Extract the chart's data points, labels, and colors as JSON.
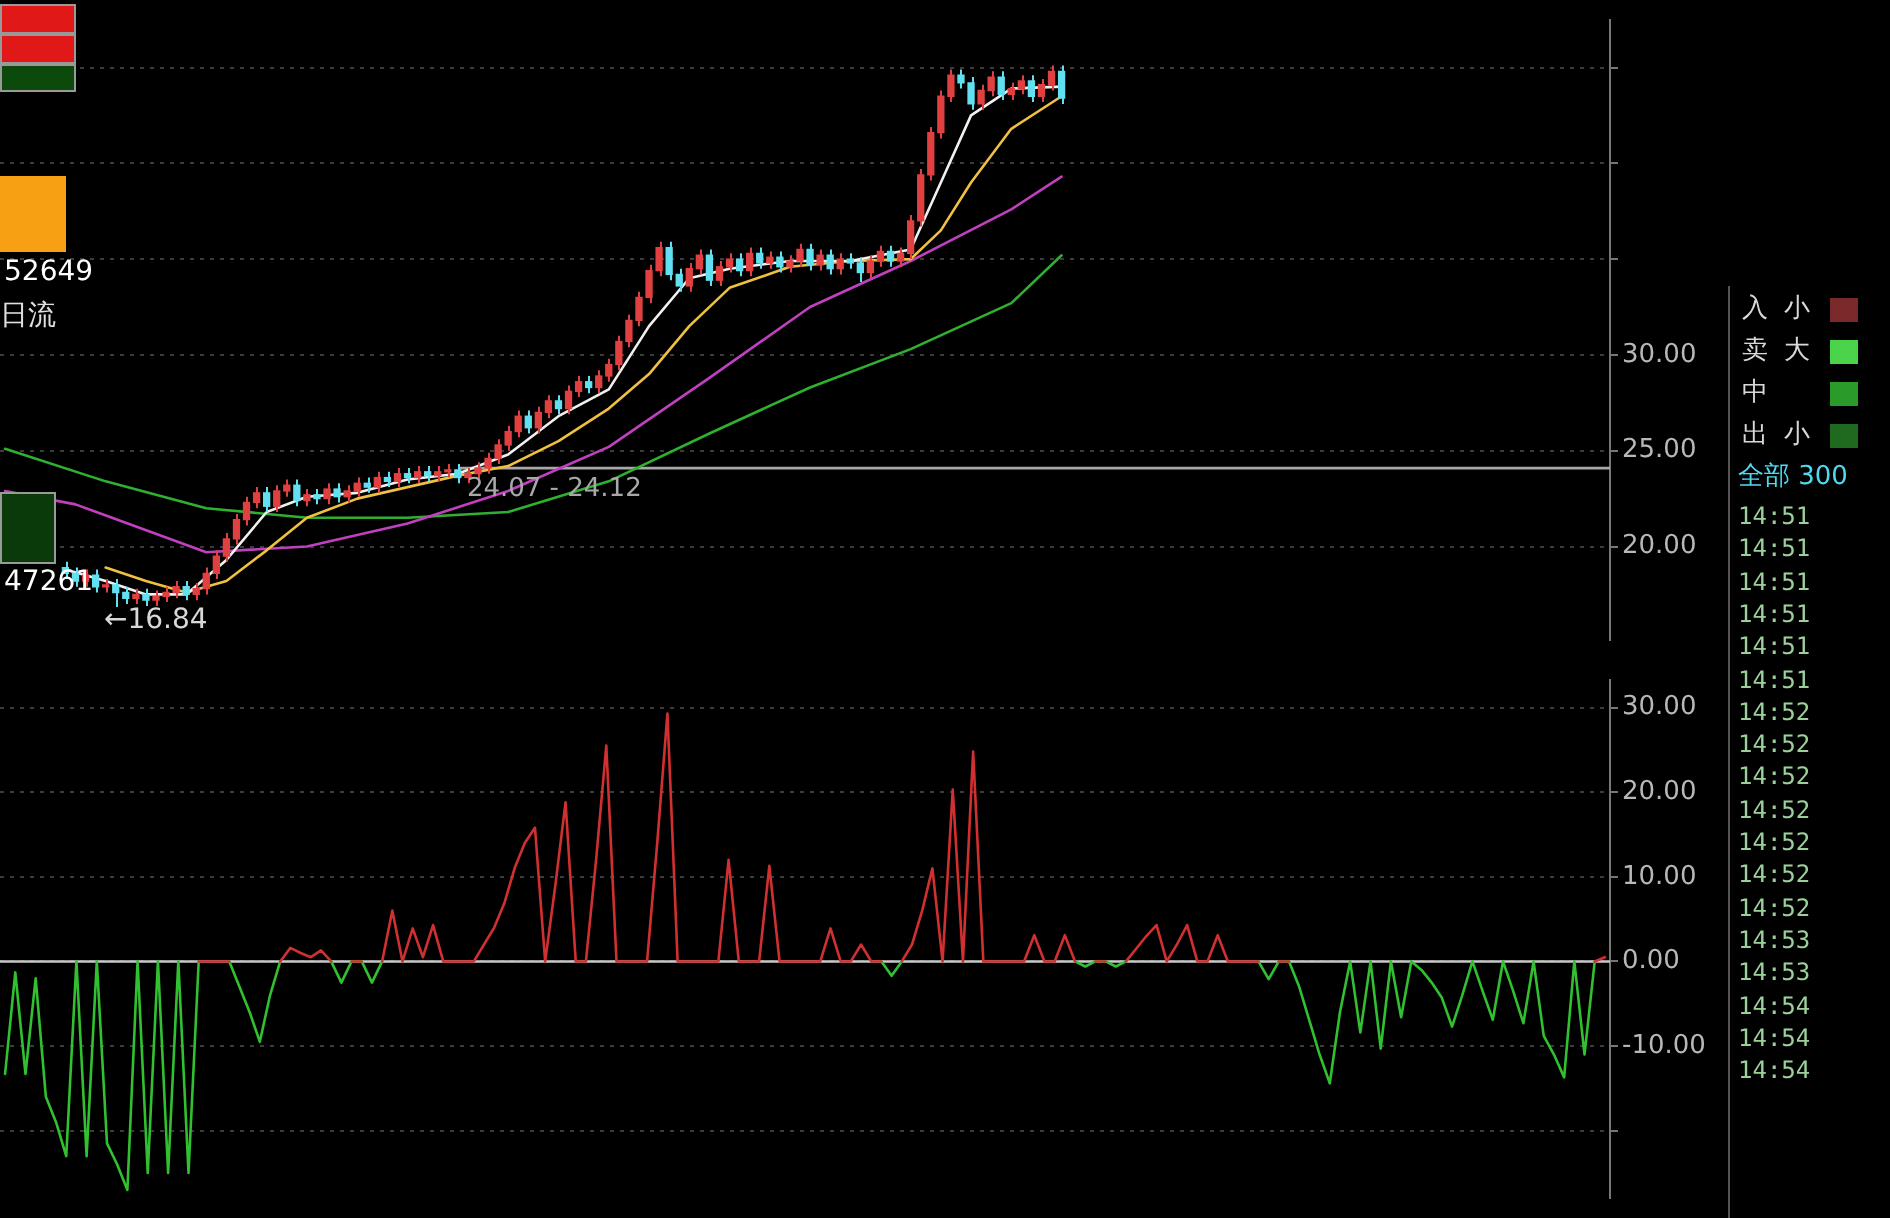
{
  "chart_data": [
    {
      "type": "candlestick",
      "ylim": [
        15.1,
        47.5
      ],
      "tick_labels": "y",
      "grid": "y",
      "yticks": [
        {
          "value": 20,
          "label": "20.00"
        },
        {
          "value": 25,
          "label": "25.00"
        },
        {
          "value": 30,
          "label": "30.00"
        },
        {
          "value": 35,
          "label": null
        },
        {
          "value": 40,
          "label": null
        },
        {
          "value": 45,
          "label": null
        }
      ],
      "categories": [
        null,
        null,
        null,
        null,
        null,
        null,
        null,
        null,
        null,
        null,
        null,
        null,
        null,
        null,
        null,
        null,
        null,
        null,
        null,
        null,
        null,
        null,
        null,
        null,
        null,
        null,
        null,
        null,
        null,
        null,
        null,
        null,
        null,
        null,
        null,
        null,
        null,
        null,
        null,
        null,
        null,
        null,
        null,
        null,
        null,
        null,
        null,
        null,
        null,
        null,
        null,
        null,
        null,
        null,
        null,
        null,
        null,
        null,
        null,
        null,
        null,
        null,
        null,
        null,
        null,
        null,
        null,
        null,
        null,
        null,
        null,
        null,
        null,
        null,
        null,
        null,
        null,
        null,
        null,
        null,
        null,
        null,
        null,
        null,
        null,
        null,
        null,
        null,
        null,
        null,
        null,
        null,
        null,
        null,
        null,
        null,
        null,
        null,
        null,
        null,
        null,
        null,
        null,
        null,
        null,
        null,
        null,
        null,
        null,
        null,
        null,
        null,
        null,
        null,
        null,
        null,
        null,
        null,
        null,
        null,
        null,
        null,
        null,
        null,
        null,
        null,
        null,
        null,
        null,
        null,
        null,
        null,
        null,
        null,
        null,
        null,
        null,
        null,
        null,
        null,
        null,
        null,
        null,
        null,
        null,
        null,
        null,
        null,
        null,
        null,
        null,
        null,
        null,
        null,
        null,
        null,
        null,
        null,
        null,
        null
      ],
      "ohlc": [
        null,
        null,
        null,
        null,
        null,
        null,
        [
          18.9,
          19.2,
          18.3,
          18.6
        ],
        [
          18.6,
          18.9,
          17.9,
          18.2
        ],
        [
          18.2,
          18.8,
          17.9,
          18.5
        ],
        [
          18.5,
          18.8,
          17.6,
          17.9
        ],
        [
          17.9,
          18.3,
          17.6,
          18.0
        ],
        [
          18.0,
          18.3,
          16.84,
          17.6
        ],
        [
          17.6,
          17.9,
          17.0,
          17.3
        ],
        [
          17.3,
          17.8,
          17.0,
          17.5
        ],
        [
          17.5,
          17.8,
          16.9,
          17.2
        ],
        [
          17.2,
          17.7,
          16.9,
          17.4
        ],
        [
          17.4,
          17.9,
          17.1,
          17.6
        ],
        [
          17.6,
          18.2,
          17.3,
          17.9
        ],
        [
          17.9,
          18.2,
          17.2,
          17.5
        ],
        [
          17.5,
          18.1,
          17.2,
          17.8
        ],
        [
          17.8,
          18.9,
          17.5,
          18.6
        ],
        [
          18.6,
          19.8,
          18.3,
          19.5
        ],
        [
          19.5,
          20.7,
          19.2,
          20.4
        ],
        [
          20.4,
          21.7,
          20.1,
          21.4
        ],
        [
          21.4,
          22.6,
          21.1,
          22.3
        ],
        [
          22.3,
          23.1,
          22.0,
          22.8
        ],
        [
          22.8,
          23.1,
          21.8,
          22.1
        ],
        [
          22.1,
          23.2,
          21.8,
          22.9
        ],
        [
          22.9,
          23.5,
          22.6,
          23.2
        ],
        [
          23.2,
          23.5,
          22.1,
          22.4
        ],
        [
          22.4,
          23.0,
          22.1,
          22.7
        ],
        [
          22.7,
          23.0,
          22.2,
          22.5
        ],
        [
          22.5,
          23.3,
          22.2,
          23.0
        ],
        [
          23.0,
          23.3,
          22.3,
          22.6
        ],
        [
          22.6,
          23.2,
          22.3,
          22.9
        ],
        [
          22.9,
          23.6,
          22.6,
          23.3
        ],
        [
          23.3,
          23.6,
          22.8,
          23.1
        ],
        [
          23.1,
          23.9,
          22.8,
          23.6
        ],
        [
          23.6,
          23.9,
          23.1,
          23.4
        ],
        [
          23.4,
          24.1,
          23.1,
          23.8
        ],
        [
          23.8,
          24.1,
          23.3,
          23.6
        ],
        [
          23.6,
          24.2,
          23.3,
          23.9
        ],
        [
          23.9,
          24.2,
          23.4,
          23.7
        ],
        [
          23.7,
          24.2,
          23.4,
          23.9
        ],
        [
          23.9,
          24.3,
          23.6,
          24.0
        ],
        [
          24.0,
          24.3,
          23.3,
          23.6
        ],
        [
          23.6,
          24.1,
          23.3,
          23.8
        ],
        [
          23.8,
          24.4,
          23.5,
          24.1
        ],
        [
          24.1,
          24.9,
          23.8,
          24.6
        ],
        [
          24.6,
          25.6,
          24.3,
          25.3
        ],
        [
          25.3,
          26.3,
          25.0,
          26.0
        ],
        [
          26.0,
          27.1,
          25.7,
          26.8
        ],
        [
          26.8,
          27.1,
          25.9,
          26.2
        ],
        [
          26.2,
          27.3,
          25.9,
          27.0
        ],
        [
          27.0,
          27.9,
          26.7,
          27.6
        ],
        [
          27.6,
          27.9,
          26.9,
          27.2
        ],
        [
          27.2,
          28.4,
          26.9,
          28.1
        ],
        [
          28.1,
          28.9,
          27.8,
          28.6
        ],
        [
          28.6,
          28.9,
          28.0,
          28.3
        ],
        [
          28.3,
          29.2,
          28.0,
          28.9
        ],
        [
          28.9,
          29.8,
          28.6,
          29.5
        ],
        [
          29.5,
          31.0,
          29.2,
          30.7
        ],
        [
          30.7,
          32.1,
          30.4,
          31.8
        ],
        [
          31.8,
          33.3,
          31.5,
          33.0
        ],
        [
          33.0,
          34.7,
          32.7,
          34.4
        ],
        [
          34.4,
          35.9,
          34.1,
          35.6
        ],
        [
          35.6,
          35.9,
          33.9,
          34.2
        ],
        [
          34.2,
          34.5,
          33.3,
          33.6
        ],
        [
          33.6,
          34.8,
          33.3,
          34.5
        ],
        [
          34.5,
          35.5,
          34.2,
          35.2
        ],
        [
          35.2,
          35.5,
          33.6,
          33.9
        ],
        [
          33.9,
          34.9,
          33.6,
          34.6
        ],
        [
          34.6,
          35.3,
          34.3,
          35.0
        ],
        [
          35.0,
          35.3,
          34.1,
          34.4
        ],
        [
          34.4,
          35.6,
          34.1,
          35.3
        ],
        [
          35.3,
          35.6,
          34.5,
          34.8
        ],
        [
          34.8,
          35.4,
          34.5,
          35.1
        ],
        [
          35.1,
          35.4,
          34.3,
          34.6
        ],
        [
          34.6,
          35.2,
          34.3,
          34.9
        ],
        [
          34.9,
          35.8,
          34.6,
          35.5
        ],
        [
          35.5,
          35.8,
          34.4,
          34.7
        ],
        [
          34.7,
          35.5,
          34.4,
          35.2
        ],
        [
          35.2,
          35.5,
          34.2,
          34.5
        ],
        [
          34.5,
          35.3,
          34.2,
          35.0
        ],
        [
          35.0,
          35.3,
          34.5,
          34.8
        ],
        [
          34.8,
          35.1,
          33.8,
          34.3
        ],
        [
          34.3,
          35.2,
          34.0,
          34.9
        ],
        [
          34.9,
          35.7,
          34.6,
          35.4
        ],
        [
          35.4,
          35.7,
          34.6,
          34.9
        ],
        [
          34.9,
          35.6,
          34.6,
          35.3
        ],
        [
          35.3,
          37.3,
          35.0,
          37.0
        ],
        [
          37.0,
          39.7,
          36.7,
          39.4
        ],
        [
          39.4,
          41.9,
          39.1,
          41.6
        ],
        [
          41.6,
          43.8,
          41.3,
          43.5
        ],
        [
          43.5,
          44.9,
          43.2,
          44.6
        ],
        [
          44.6,
          44.9,
          43.9,
          44.2
        ],
        [
          44.2,
          44.5,
          42.8,
          43.1
        ],
        [
          43.1,
          44.1,
          42.8,
          43.8
        ],
        [
          43.8,
          44.8,
          43.5,
          44.5
        ],
        [
          44.5,
          44.8,
          43.3,
          43.6
        ],
        [
          43.6,
          44.2,
          43.3,
          43.9
        ],
        [
          43.9,
          44.6,
          43.6,
          44.3
        ],
        [
          44.3,
          44.6,
          43.2,
          43.5
        ],
        [
          43.5,
          44.4,
          43.2,
          44.1
        ],
        [
          44.1,
          45.1,
          43.8,
          44.8
        ],
        [
          44.8,
          45.1,
          43.1,
          43.4
        ],
        null,
        null,
        null,
        null,
        null,
        null,
        null,
        null,
        null,
        null,
        null,
        null,
        null,
        null,
        null,
        null,
        null,
        null,
        null,
        null,
        null,
        null,
        null,
        null,
        null,
        null,
        null,
        null,
        null,
        null,
        null,
        null,
        null,
        null,
        null,
        null,
        null,
        null,
        null,
        null,
        null,
        null,
        null,
        null,
        null,
        null,
        null,
        null,
        null,
        null,
        null,
        null,
        null,
        null
      ],
      "colors": [
        null,
        null,
        null,
        null,
        null,
        null,
        "#60e0f0",
        "#60e0f0",
        "#e04040",
        "#60e0f0",
        "#e04040",
        "#60e0f0",
        "#60e0f0",
        "#e04040",
        "#60e0f0",
        "#e04040",
        "#e04040",
        "#e04040",
        "#60e0f0",
        "#e04040",
        "#e04040",
        "#e04040",
        "#e04040",
        "#e04040",
        "#e04040",
        "#e04040",
        "#60e0f0",
        "#e04040",
        "#e04040",
        "#60e0f0",
        "#e04040",
        "#60e0f0",
        "#e04040",
        "#60e0f0",
        "#e04040",
        "#e04040",
        "#60e0f0",
        "#e04040",
        "#60e0f0",
        "#e04040",
        "#60e0f0",
        "#e04040",
        "#60e0f0",
        "#e04040",
        "#e04040",
        "#60e0f0",
        "#e04040",
        "#e04040",
        "#e04040",
        "#e04040",
        "#e04040",
        "#e04040",
        "#60e0f0",
        "#e04040",
        "#e04040",
        "#60e0f0",
        "#e04040",
        "#e04040",
        "#60e0f0",
        "#e04040",
        "#e04040",
        "#e04040",
        "#e04040",
        "#e04040",
        "#e04040",
        "#e04040",
        "#60e0f0",
        "#60e0f0",
        "#e04040",
        "#e04040",
        "#60e0f0",
        "#e04040",
        "#e04040",
        "#60e0f0",
        "#e04040",
        "#60e0f0",
        "#e04040",
        "#60e0f0",
        "#e04040",
        "#e04040",
        "#60e0f0",
        "#e04040",
        "#60e0f0",
        "#e04040",
        "#60e0f0",
        "#60e0f0",
        "#e04040",
        "#e04040",
        "#60e0f0",
        "#e04040",
        "#e04040",
        "#e04040",
        "#e04040",
        "#e04040",
        "#e04040",
        "#60e0f0",
        "#60e0f0",
        "#e04040",
        "#e04040",
        "#60e0f0",
        "#e04040",
        "#e04040",
        "#60e0f0",
        "#e04040",
        "#e04040",
        "#60e0f0",
        null,
        null,
        null,
        null,
        null,
        null,
        null,
        null,
        null,
        null,
        null,
        null,
        null,
        null,
        null,
        null,
        null,
        null,
        null,
        null,
        null,
        null,
        null,
        null,
        null,
        null,
        null,
        null,
        null,
        null,
        null,
        null,
        null,
        null,
        null,
        null,
        null,
        null,
        null,
        null,
        null,
        null,
        null,
        null,
        null,
        null,
        null,
        null,
        null,
        null,
        null,
        null,
        null,
        null
      ],
      "series": [
        {
          "type": "line",
          "color": "#f0f0f0",
          "values": [
            null,
            null,
            null,
            null,
            null,
            null,
            18.8,
            null,
            null,
            null,
            18.2,
            null,
            null,
            null,
            17.5,
            null,
            null,
            null,
            17.5,
            null,
            null,
            null,
            19.3,
            null,
            null,
            null,
            21.8,
            null,
            null,
            null,
            22.6,
            null,
            null,
            null,
            null,
            22.8,
            null,
            null,
            null,
            null,
            23.5,
            null,
            null,
            null,
            null,
            23.8,
            null,
            null,
            null,
            null,
            24.8,
            null,
            null,
            null,
            null,
            26.8,
            null,
            null,
            null,
            null,
            28.2,
            null,
            null,
            null,
            31.5,
            null,
            null,
            null,
            34.0,
            null,
            null,
            null,
            34.5,
            null,
            null,
            null,
            null,
            null,
            34.9,
            null,
            null,
            null,
            null,
            null,
            34.9,
            null,
            null,
            null,
            null,
            null,
            35.5,
            null,
            null,
            39.0,
            null,
            null,
            42.5,
            null,
            null,
            null,
            43.9,
            null,
            null,
            null,
            null,
            44.0,
            null,
            null,
            null,
            null,
            null,
            null,
            null,
            null,
            null,
            null,
            null,
            null,
            null,
            null,
            null,
            null,
            null,
            null,
            null,
            null,
            null,
            null,
            null,
            null,
            null,
            null,
            null,
            null,
            null,
            null,
            null,
            null,
            null,
            null,
            null,
            null,
            null,
            null,
            null,
            null,
            null,
            null,
            null,
            null,
            null,
            null,
            null,
            null,
            null,
            null,
            null,
            null,
            null,
            null
          ]
        },
        {
          "type": "line",
          "color": "#f0c040",
          "values": [
            null,
            null,
            null,
            null,
            null,
            null,
            null,
            null,
            null,
            null,
            18.9,
            null,
            null,
            null,
            18.2,
            null,
            null,
            null,
            17.6,
            null,
            null,
            null,
            18.2,
            null,
            null,
            null,
            19.8,
            null,
            null,
            null,
            21.5,
            null,
            null,
            null,
            null,
            22.5,
            null,
            null,
            null,
            null,
            23.1,
            null,
            null,
            null,
            null,
            23.7,
            null,
            null,
            null,
            null,
            24.2,
            null,
            null,
            null,
            null,
            25.5,
            null,
            null,
            null,
            null,
            27.2,
            null,
            null,
            null,
            29.0,
            null,
            null,
            null,
            31.5,
            null,
            null,
            null,
            33.5,
            null,
            null,
            null,
            null,
            null,
            34.6,
            null,
            null,
            null,
            null,
            null,
            34.9,
            null,
            null,
            null,
            null,
            null,
            35.0,
            null,
            null,
            36.5,
            null,
            null,
            39.0,
            null,
            null,
            null,
            41.8,
            null,
            null,
            null,
            null,
            43.5,
            null,
            null,
            null,
            null,
            null,
            null,
            null,
            null,
            null,
            null,
            null,
            null,
            null,
            null,
            null,
            null,
            null,
            null,
            null,
            null,
            null,
            null,
            null,
            null,
            null,
            null,
            null,
            null,
            null,
            null,
            null,
            null,
            null,
            null,
            null,
            null,
            null,
            null,
            null,
            null,
            null,
            null,
            null,
            null,
            null,
            null,
            null,
            null,
            null,
            null,
            null,
            null,
            null,
            null
          ]
        },
        {
          "type": "line",
          "color": "#c040c0",
          "values": [
            22.9,
            null,
            null,
            null,
            null,
            null,
            null,
            22.2,
            null,
            null,
            null,
            null,
            null,
            null,
            null,
            null,
            null,
            null,
            null,
            null,
            19.7,
            null,
            null,
            null,
            null,
            null,
            null,
            null,
            null,
            null,
            20.0,
            null,
            null,
            null,
            null,
            null,
            null,
            null,
            null,
            null,
            21.2,
            null,
            null,
            null,
            null,
            null,
            null,
            null,
            null,
            null,
            22.9,
            null,
            null,
            null,
            null,
            null,
            null,
            null,
            null,
            null,
            25.2,
            null,
            null,
            null,
            null,
            null,
            null,
            null,
            null,
            null,
            28.8,
            null,
            null,
            null,
            null,
            null,
            null,
            null,
            null,
            null,
            32.5,
            null,
            null,
            null,
            null,
            null,
            null,
            null,
            null,
            null,
            34.9,
            null,
            null,
            null,
            null,
            null,
            null,
            null,
            null,
            null,
            37.6,
            null,
            null,
            null,
            null,
            39.3,
            null,
            null,
            null,
            null,
            null,
            null,
            null,
            null,
            null,
            null,
            null,
            null,
            null,
            null,
            null,
            null,
            null,
            null,
            null,
            null,
            null,
            null,
            null,
            null,
            null,
            null,
            null,
            null,
            null,
            null,
            null,
            null,
            null,
            null,
            null,
            null,
            null,
            null,
            null,
            null,
            null,
            null,
            null,
            null,
            null,
            null,
            null,
            null,
            null,
            null,
            null,
            null,
            null,
            null
          ]
        },
        {
          "type": "line",
          "color": "#30b030",
          "values": [
            25.1,
            null,
            null,
            null,
            null,
            null,
            null,
            null,
            null,
            null,
            23.4,
            null,
            null,
            null,
            null,
            null,
            null,
            null,
            null,
            null,
            22.0,
            null,
            null,
            null,
            null,
            null,
            null,
            null,
            null,
            null,
            21.5,
            null,
            null,
            null,
            null,
            null,
            null,
            null,
            null,
            null,
            21.5,
            null,
            null,
            null,
            null,
            null,
            null,
            null,
            null,
            null,
            21.8,
            null,
            null,
            null,
            null,
            null,
            null,
            null,
            null,
            null,
            23.4,
            null,
            null,
            null,
            null,
            null,
            null,
            null,
            null,
            null,
            25.9,
            null,
            null,
            null,
            null,
            null,
            null,
            null,
            null,
            null,
            28.3,
            null,
            null,
            null,
            null,
            null,
            null,
            null,
            null,
            null,
            30.3,
            null,
            null,
            null,
            null,
            null,
            null,
            null,
            null,
            null,
            32.7,
            null,
            null,
            null,
            null,
            35.2,
            null,
            null,
            null,
            null,
            null,
            null,
            null,
            null,
            null,
            null,
            null,
            null,
            null,
            null,
            null,
            null,
            null,
            null,
            null,
            null,
            null,
            null,
            null,
            null,
            null,
            null,
            null,
            null,
            null,
            null,
            null,
            null,
            null,
            null,
            null,
            null,
            null,
            null,
            null,
            null,
            null,
            null,
            null,
            null,
            null,
            null,
            null,
            null,
            null,
            null,
            null,
            null,
            null,
            null
          ]
        }
      ],
      "bands": [
        {
          "axis": "y",
          "from": 24.07,
          "to": 24.12,
          "label": "24.07 - 24.12",
          "color": "#a8a8a8"
        }
      ],
      "annotations": [
        "52649",
        "日流",
        "47261",
        "←16.84",
        "入 小",
        "卖 大",
        "中",
        "出 小",
        "全部 300",
        "14:51",
        "14:51",
        "14:51",
        "14:51",
        "14:51",
        "14:51",
        "14:52",
        "14:52",
        "14:52",
        "14:52",
        "14:52",
        "14:52",
        "14:52",
        "14:53",
        "14:53",
        "14:54",
        "14:54",
        "14:54"
      ]
    },
    {
      "type": "line",
      "ylim": [
        -28,
        33.3
      ],
      "tick_labels": "y",
      "grid": "y",
      "yticks": [
        {
          "value": -20,
          "label": null
        },
        {
          "value": -10,
          "label": "-10.00"
        },
        {
          "value": 0,
          "label": "0.00"
        },
        {
          "value": 10,
          "label": "10.00"
        },
        {
          "value": 20,
          "label": "20.00"
        },
        {
          "value": 30,
          "label": "30.00"
        }
      ],
      "categories": [
        null,
        null,
        null,
        null,
        null,
        null,
        null,
        null,
        null,
        null,
        null,
        null,
        null,
        null,
        null,
        null,
        null,
        null,
        null,
        null,
        null,
        null,
        null,
        null,
        null,
        null,
        null,
        null,
        null,
        null,
        null,
        null,
        null,
        null,
        null,
        null,
        null,
        null,
        null,
        null,
        null,
        null,
        null,
        null,
        null,
        null,
        null,
        null,
        null,
        null,
        null,
        null,
        null,
        null,
        null,
        null,
        null,
        null,
        null,
        null,
        null,
        null,
        null,
        null,
        null,
        null,
        null,
        null,
        null,
        null,
        null,
        null,
        null,
        null,
        null,
        null,
        null,
        null,
        null,
        null,
        null,
        null,
        null,
        null,
        null,
        null,
        null,
        null,
        null,
        null,
        null,
        null,
        null,
        null,
        null,
        null,
        null,
        null,
        null,
        null,
        null,
        null,
        null,
        null,
        null,
        null,
        null,
        null,
        null,
        null,
        null,
        null,
        null,
        null,
        null,
        null,
        null,
        null,
        null,
        null,
        null,
        null,
        null,
        null,
        null,
        null,
        null,
        null,
        null,
        null,
        null,
        null,
        null,
        null,
        null,
        null,
        null,
        null,
        null,
        null,
        null,
        null,
        null,
        null,
        null,
        null,
        null,
        null,
        null,
        null,
        null,
        null,
        null,
        null,
        null,
        null,
        null,
        null
      ],
      "series": [
        {
          "color": "#d03030",
          "values": [
            null,
            null,
            null,
            null,
            null,
            null,
            null,
            null,
            null,
            null,
            null,
            null,
            null,
            null,
            null,
            null,
            null,
            null,
            null,
            0,
            0,
            0,
            0,
            null,
            null,
            null,
            null,
            0,
            1.6,
            1,
            0.5,
            1.3,
            0,
            null,
            0,
            0,
            null,
            0,
            6,
            0,
            3.9,
            0.5,
            4.3,
            0,
            0,
            0,
            0,
            2,
            4,
            6.9,
            11,
            14,
            15.8,
            0,
            9,
            18.8,
            0,
            0,
            12,
            25.5,
            0,
            0,
            0,
            0,
            14,
            29.3,
            0,
            0,
            0,
            0,
            0,
            12,
            0,
            0,
            0,
            11.3,
            0,
            0,
            0,
            0,
            0,
            3.9,
            0,
            0,
            2,
            0,
            0,
            null,
            0,
            2,
            6,
            11,
            0,
            20.3,
            0,
            24.8,
            0,
            0,
            0,
            0,
            0,
            3.1,
            0,
            0,
            3.1,
            0,
            null,
            0,
            0,
            null,
            0,
            1.5,
            3,
            4.3,
            0,
            2,
            4.3,
            0,
            0,
            3.1,
            0,
            0,
            0,
            0,
            null,
            0,
            0,
            null,
            null,
            null,
            null,
            null,
            null,
            null,
            null,
            null,
            null,
            null,
            null,
            null,
            null,
            null,
            null,
            null,
            null,
            null,
            null,
            null,
            null,
            null,
            null,
            null,
            null,
            null,
            null,
            null,
            0,
            0.5
          ]
        },
        {
          "color": "#30c030",
          "values": [
            -13.3,
            -1.3,
            -13.3,
            -2,
            -16,
            -19,
            -23,
            0,
            -23,
            0,
            -21.5,
            -24,
            -27,
            0,
            -25,
            0,
            -25,
            0,
            -25,
            0,
            null,
            null,
            0,
            -3,
            -6,
            -9.5,
            -4,
            0,
            null,
            null,
            null,
            null,
            0,
            -2.5,
            0,
            0,
            -2.5,
            0,
            null,
            null,
            null,
            null,
            null,
            null,
            null,
            null,
            null,
            null,
            null,
            null,
            null,
            null,
            null,
            null,
            null,
            null,
            null,
            null,
            null,
            null,
            null,
            null,
            null,
            null,
            null,
            null,
            null,
            null,
            null,
            null,
            null,
            null,
            null,
            null,
            null,
            null,
            null,
            null,
            null,
            null,
            null,
            null,
            null,
            null,
            null,
            null,
            0,
            -1.7,
            0,
            null,
            null,
            null,
            null,
            null,
            null,
            null,
            null,
            null,
            null,
            null,
            null,
            null,
            null,
            null,
            null,
            0,
            -0.6,
            0,
            0,
            -0.6,
            0,
            null,
            null,
            null,
            null,
            null,
            null,
            null,
            null,
            null,
            null,
            null,
            null,
            0,
            -2.1,
            0,
            0,
            -3,
            -7,
            -11,
            -14.4,
            -6,
            0,
            -8.4,
            0,
            -10.3,
            0,
            -6.6,
            0,
            -1,
            -2.5,
            -4.3,
            -7.7,
            -4,
            0,
            -3.5,
            -6.9,
            0,
            -3.5,
            -7.3,
            0,
            -8.8,
            -11,
            -13.7,
            0,
            -11,
            0,
            null
          ]
        }
      ],
      "ref_lines": [
        {
          "axis": "y",
          "value": 0,
          "color": "#c8c8c8"
        }
      ]
    }
  ]
}
